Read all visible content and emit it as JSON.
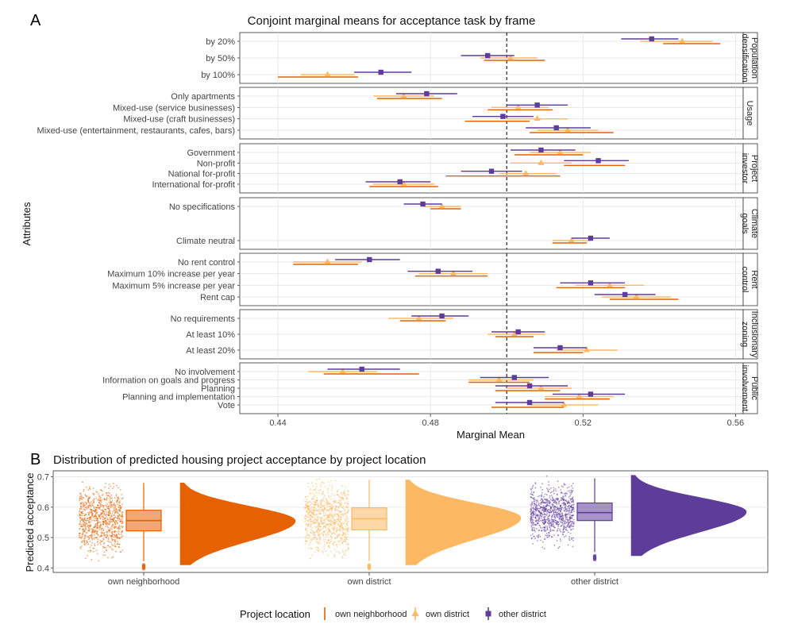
{
  "colors": {
    "own_neighborhood": "#e66101",
    "own_district": "#fdb863",
    "other_district": "#5e3c99",
    "grid": "#e3e3e3",
    "reference": "#333333",
    "strip_fill": "#ffffff"
  },
  "chart_data": [
    {
      "type": "scatter",
      "panel_label": "A",
      "title": "Conjoint marginal means for acceptance task by frame",
      "xlabel": "Marginal Mean",
      "ylabel": "Attributes",
      "xlim": [
        0.43,
        0.562
      ],
      "xticks": [
        "0.44",
        "0.48",
        "0.52",
        "0.56"
      ],
      "xtick_values": [
        0.44,
        0.48,
        0.52,
        0.56
      ],
      "reference_line": 0.5,
      "grid": true,
      "legend": {
        "title": "Project location",
        "placement": "bottom",
        "entries": [
          "own neighborhood",
          "own district",
          "other district"
        ]
      },
      "series": [
        {
          "name": "own neighborhood",
          "marker": "line"
        },
        {
          "name": "own district",
          "marker": "triangle"
        },
        {
          "name": "other district",
          "marker": "square"
        }
      ],
      "facets": [
        {
          "strip": [
            "Population",
            "densification"
          ],
          "rows": [
            {
              "label": "by 20%",
              "own_neighborhood": {
                "est": 0.546,
                "lo": 0.541,
                "hi": 0.556
              },
              "own_district": {
                "est": 0.546,
                "lo": 0.535,
                "hi": 0.554
              },
              "other_district": {
                "est": 0.538,
                "lo": 0.53,
                "hi": 0.545
              }
            },
            {
              "label": "by 50%",
              "own_neighborhood": {
                "est": 0.502,
                "lo": 0.494,
                "hi": 0.51
              },
              "own_district": {
                "est": 0.501,
                "lo": 0.493,
                "hi": 0.508
              },
              "other_district": {
                "est": 0.495,
                "lo": 0.488,
                "hi": 0.502
              }
            },
            {
              "label": "by 100%",
              "own_neighborhood": {
                "est": 0.452,
                "lo": 0.44,
                "hi": 0.461
              },
              "own_district": {
                "est": 0.453,
                "lo": 0.446,
                "hi": 0.46
              },
              "other_district": {
                "est": 0.467,
                "lo": 0.46,
                "hi": 0.475
              }
            }
          ]
        },
        {
          "strip": [
            "Usage"
          ],
          "rows": [
            {
              "label": "Only apartments",
              "own_neighborhood": {
                "est": 0.474,
                "lo": 0.466,
                "hi": 0.483
              },
              "own_district": {
                "est": 0.473,
                "lo": 0.465,
                "hi": 0.481
              },
              "other_district": {
                "est": 0.479,
                "lo": 0.471,
                "hi": 0.487
              }
            },
            {
              "label": "Mixed-use (service businesses)",
              "own_neighborhood": {
                "est": 0.503,
                "lo": 0.495,
                "hi": 0.512
              },
              "own_district": {
                "est": 0.503,
                "lo": 0.496,
                "hi": 0.511
              },
              "other_district": {
                "est": 0.508,
                "lo": 0.5,
                "hi": 0.516
              }
            },
            {
              "label": "Mixed-use (craft businesses)",
              "own_neighborhood": {
                "est": 0.498,
                "lo": 0.489,
                "hi": 0.506
              },
              "own_district": {
                "est": 0.508,
                "lo": 0.5,
                "hi": 0.516
              },
              "other_district": {
                "est": 0.499,
                "lo": 0.491,
                "hi": 0.507
              }
            },
            {
              "label": "Mixed-use (entertainment, restaurants, cafes, bars)",
              "own_neighborhood": {
                "est": 0.516,
                "lo": 0.506,
                "hi": 0.528
              },
              "own_district": {
                "est": 0.516,
                "lo": 0.508,
                "hi": 0.524
              },
              "other_district": {
                "est": 0.513,
                "lo": 0.505,
                "hi": 0.522
              }
            }
          ]
        },
        {
          "strip": [
            "Project",
            "investor"
          ],
          "rows": [
            {
              "label": "Government",
              "own_neighborhood": {
                "est": 0.511,
                "lo": 0.502,
                "hi": 0.52
              },
              "own_district": {
                "est": 0.514,
                "lo": 0.506,
                "hi": 0.522
              },
              "other_district": {
                "est": 0.509,
                "lo": 0.501,
                "hi": 0.518
              }
            },
            {
              "label": "Non-profit",
              "own_neighborhood": {
                "est": 0.523,
                "lo": 0.515,
                "hi": 0.531
              },
              "own_district": {
                "est": 0.509,
                "lo": 0.501,
                "hi": 0.517
              },
              "other_district": {
                "est": 0.524,
                "lo": 0.515,
                "hi": 0.532
              }
            },
            {
              "label": "National for-profit",
              "own_neighborhood": {
                "est": 0.499,
                "lo": 0.484,
                "hi": 0.514
              },
              "own_district": {
                "est": 0.505,
                "lo": 0.498,
                "hi": 0.513
              },
              "other_district": {
                "est": 0.496,
                "lo": 0.488,
                "hi": 0.504
              }
            },
            {
              "label": "International for-profit",
              "own_neighborhood": {
                "est": 0.472,
                "lo": 0.464,
                "hi": 0.482
              },
              "own_district": {
                "est": 0.473,
                "lo": 0.465,
                "hi": 0.481
              },
              "other_district": {
                "est": 0.472,
                "lo": 0.463,
                "hi": 0.48
              }
            }
          ]
        },
        {
          "strip": [
            "Climate",
            "goals"
          ],
          "rows": [
            {
              "label": "No specifications",
              "own_neighborhood": {
                "est": 0.483,
                "lo": 0.48,
                "hi": 0.488
              },
              "own_district": {
                "est": 0.483,
                "lo": 0.478,
                "hi": 0.488
              },
              "other_district": {
                "est": 0.478,
                "lo": 0.473,
                "hi": 0.483
              }
            },
            {
              "label": "Climate neutral",
              "own_neighborhood": {
                "est": 0.517,
                "lo": 0.512,
                "hi": 0.521
              },
              "own_district": {
                "est": 0.517,
                "lo": 0.512,
                "hi": 0.522
              },
              "other_district": {
                "est": 0.522,
                "lo": 0.517,
                "hi": 0.527
              }
            }
          ]
        },
        {
          "strip": [
            "Rent",
            "control"
          ],
          "rows": [
            {
              "label": "No rent control",
              "own_neighborhood": {
                "est": 0.453,
                "lo": 0.444,
                "hi": 0.461
              },
              "own_district": {
                "est": 0.453,
                "lo": 0.444,
                "hi": 0.462
              },
              "other_district": {
                "est": 0.464,
                "lo": 0.455,
                "hi": 0.472
              }
            },
            {
              "label": "Maximum 10% increase per year",
              "own_neighborhood": {
                "est": 0.486,
                "lo": 0.476,
                "hi": 0.495
              },
              "own_district": {
                "est": 0.486,
                "lo": 0.477,
                "hi": 0.495
              },
              "other_district": {
                "est": 0.482,
                "lo": 0.474,
                "hi": 0.491
              }
            },
            {
              "label": "Maximum 5% increase per year",
              "own_neighborhood": {
                "est": 0.522,
                "lo": 0.513,
                "hi": 0.531
              },
              "own_district": {
                "est": 0.527,
                "lo": 0.518,
                "hi": 0.536
              },
              "other_district": {
                "est": 0.522,
                "lo": 0.514,
                "hi": 0.531
              }
            },
            {
              "label": "Rent cap",
              "own_neighborhood": {
                "est": 0.534,
                "lo": 0.527,
                "hi": 0.545
              },
              "own_district": {
                "est": 0.534,
                "lo": 0.525,
                "hi": 0.543
              },
              "other_district": {
                "est": 0.531,
                "lo": 0.523,
                "hi": 0.539
              }
            }
          ]
        },
        {
          "strip": [
            "Inclusionary",
            "zoning"
          ],
          "rows": [
            {
              "label": "No requirements",
              "own_neighborhood": {
                "est": 0.477,
                "lo": 0.472,
                "hi": 0.484
              },
              "own_district": {
                "est": 0.477,
                "lo": 0.469,
                "hi": 0.486
              },
              "other_district": {
                "est": 0.483,
                "lo": 0.475,
                "hi": 0.49
              }
            },
            {
              "label": "At least 10%",
              "own_neighborhood": {
                "est": 0.502,
                "lo": 0.497,
                "hi": 0.507
              },
              "own_district": {
                "est": 0.502,
                "lo": 0.495,
                "hi": 0.51
              },
              "other_district": {
                "est": 0.503,
                "lo": 0.496,
                "hi": 0.51
              }
            },
            {
              "label": "At least 20%",
              "own_neighborhood": {
                "est": 0.513,
                "lo": 0.507,
                "hi": 0.52
              },
              "own_district": {
                "est": 0.521,
                "lo": 0.513,
                "hi": 0.529
              },
              "other_district": {
                "est": 0.514,
                "lo": 0.507,
                "hi": 0.521
              }
            }
          ]
        },
        {
          "strip": [
            "Public",
            "involvement"
          ],
          "rows": [
            {
              "label": "No involvement",
              "own_neighborhood": {
                "est": 0.462,
                "lo": 0.452,
                "hi": 0.477
              },
              "own_district": {
                "est": 0.457,
                "lo": 0.448,
                "hi": 0.466
              },
              "other_district": {
                "est": 0.462,
                "lo": 0.453,
                "hi": 0.472
              }
            },
            {
              "label": "Information on goals and progress",
              "own_neighborhood": {
                "est": 0.498,
                "lo": 0.49,
                "hi": 0.506
              },
              "own_district": {
                "est": 0.498,
                "lo": 0.49,
                "hi": 0.507
              },
              "other_district": {
                "est": 0.502,
                "lo": 0.493,
                "hi": 0.511
              }
            },
            {
              "label": "Planning",
              "own_neighborhood": {
                "est": 0.507,
                "lo": 0.497,
                "hi": 0.514
              },
              "own_district": {
                "est": 0.509,
                "lo": 0.5,
                "hi": 0.517
              },
              "other_district": {
                "est": 0.506,
                "lo": 0.497,
                "hi": 0.516
              }
            },
            {
              "label": "Planning and implementation",
              "own_neighborhood": {
                "est": 0.519,
                "lo": 0.51,
                "hi": 0.527
              },
              "own_district": {
                "est": 0.519,
                "lo": 0.51,
                "hi": 0.528
              },
              "other_district": {
                "est": 0.522,
                "lo": 0.512,
                "hi": 0.531
              }
            },
            {
              "label": "Vote",
              "own_neighborhood": {
                "est": 0.506,
                "lo": 0.496,
                "hi": 0.515
              },
              "own_district": {
                "est": 0.515,
                "lo": 0.506,
                "hi": 0.524
              },
              "other_district": {
                "est": 0.506,
                "lo": 0.497,
                "hi": 0.515
              }
            }
          ]
        }
      ]
    },
    {
      "type": "violin",
      "panel_label": "B",
      "title": "Distribution of predicted housing project acceptance by project location",
      "xlabel": "",
      "ylabel": "Predicted acceptance",
      "ylim": [
        0.385,
        0.72
      ],
      "yticks": [
        "0.4",
        "0.5",
        "0.6",
        "0.7"
      ],
      "ytick_values": [
        0.4,
        0.5,
        0.6,
        0.7
      ],
      "grid": true,
      "categories": [
        "own neighborhood",
        "own district",
        "other district"
      ],
      "groups": [
        {
          "name": "own neighborhood",
          "min": 0.41,
          "q1": 0.522,
          "median": 0.556,
          "q3": 0.59,
          "max": 0.68,
          "peak": 0.555,
          "jitter_range": [
            0.42,
            0.685
          ]
        },
        {
          "name": "own district",
          "min": 0.41,
          "q1": 0.525,
          "median": 0.562,
          "q3": 0.598,
          "max": 0.69,
          "peak": 0.565,
          "jitter_range": [
            0.42,
            0.695
          ]
        },
        {
          "name": "other district",
          "min": 0.44,
          "q1": 0.556,
          "median": 0.582,
          "q3": 0.614,
          "max": 0.695,
          "peak": 0.585,
          "jitter_range": [
            0.44,
            0.71
          ]
        }
      ]
    }
  ]
}
